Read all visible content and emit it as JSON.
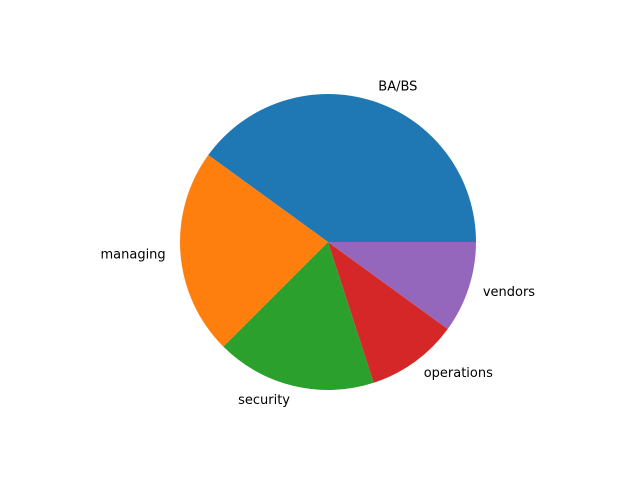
{
  "chart_data": {
    "type": "pie",
    "title": "",
    "categories": [
      "BA/BS",
      "managing",
      "security",
      "operations",
      "vendors"
    ],
    "values": [
      40,
      22.5,
      17.5,
      10,
      10
    ],
    "colors": [
      "#1f77b4",
      "#ff7f0e",
      "#2ca02c",
      "#d62728",
      "#9467bd"
    ],
    "start_angle_deg": 0,
    "direction": "counterclockwise",
    "legend": "none"
  }
}
